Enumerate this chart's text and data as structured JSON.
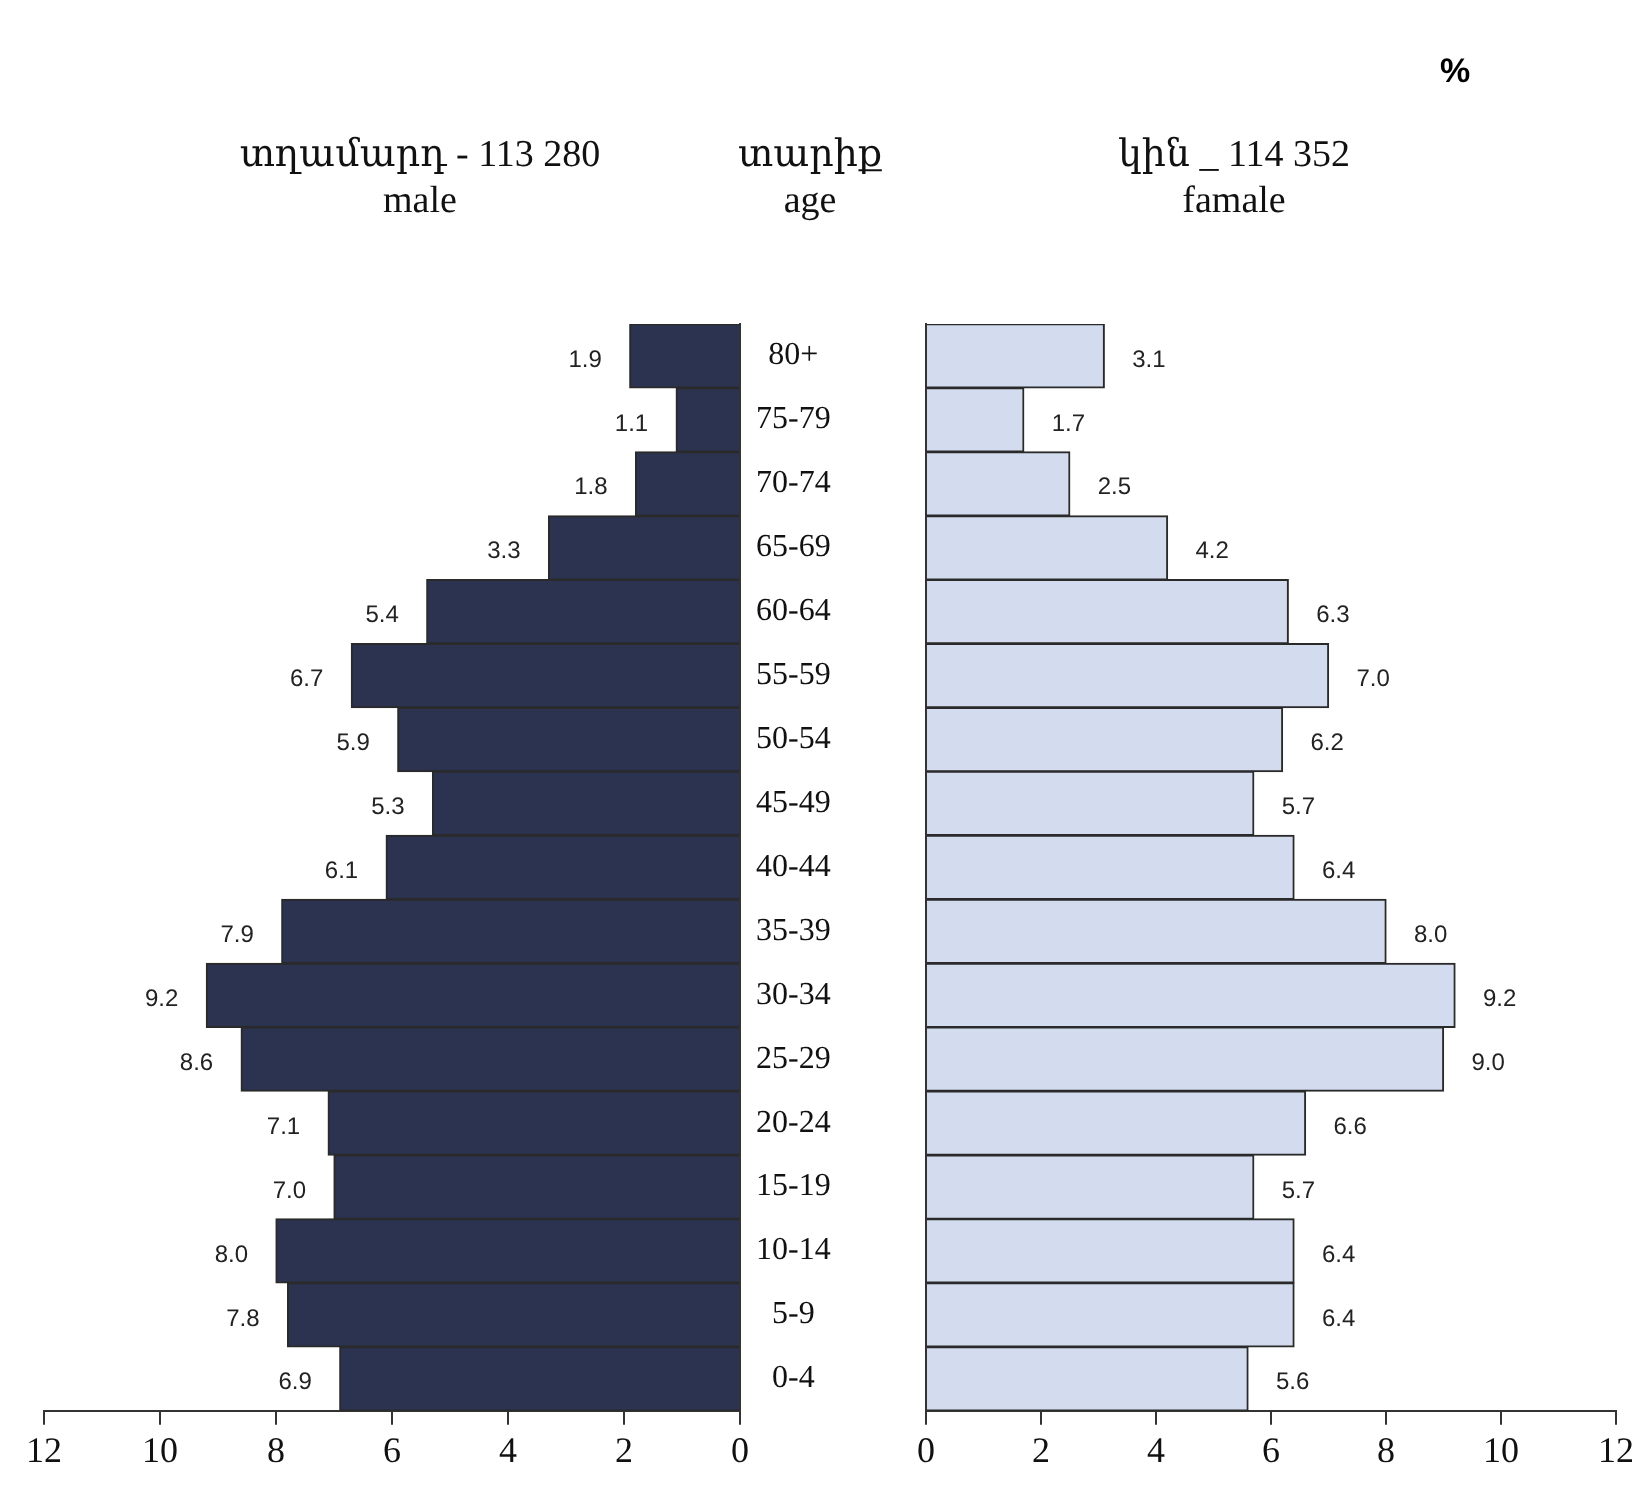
{
  "chart_data": [
    {
      "type": "bar",
      "orientation": "horizontal",
      "title": "տղամարդ  - 113 280",
      "subtitle": "male",
      "ylabel": "տարիք\nage",
      "categories": [
        "80+",
        "75-79",
        "70-74",
        "65-69",
        "60-64",
        "55-59",
        "50-54",
        "45-49",
        "40-44",
        "35-39",
        "30-34",
        "25-29",
        "20-24",
        "15-19",
        "10-14",
        "5-9",
        "0-4"
      ],
      "values": [
        1.9,
        1.1,
        1.8,
        3.3,
        5.4,
        6.7,
        5.9,
        5.3,
        6.1,
        7.9,
        9.2,
        8.6,
        7.1,
        7.0,
        8.0,
        7.8,
        6.9
      ],
      "value_labels": [
        "1.9",
        "1.1",
        "1.8",
        "3.3",
        "5.4",
        "6.7",
        "5.9",
        "5.3",
        "6.1",
        "7.9",
        "9.2",
        "8.6",
        "7.1",
        "7.0",
        "8.0",
        "7.8",
        "6.9"
      ],
      "color": "#2b3350",
      "xlim": [
        12,
        0
      ],
      "xticks": [
        12,
        10,
        8,
        6,
        4,
        2,
        0
      ],
      "grid": false,
      "legend": false
    },
    {
      "type": "bar",
      "orientation": "horizontal",
      "title": "կին  _ 114 352",
      "subtitle": "famale",
      "annotations": [
        "%"
      ],
      "categories": [
        null,
        null,
        null,
        null,
        null,
        null,
        null,
        null,
        null,
        null,
        null,
        null,
        null,
        null,
        null,
        null,
        null
      ],
      "values": [
        3.1,
        1.7,
        2.5,
        4.2,
        6.3,
        7.0,
        6.2,
        5.7,
        6.4,
        8.0,
        9.2,
        9.0,
        6.6,
        5.7,
        6.4,
        6.4,
        5.6
      ],
      "value_labels": [
        "3.1",
        "1.7",
        "2.5",
        "4.2",
        "6.3",
        "7.0",
        "6.2",
        "5.7",
        "6.4",
        "8.0",
        "9.2",
        "9.0",
        "6.6",
        "5.7",
        "6.4",
        "6.4",
        "5.6"
      ],
      "color": "#d3dcee",
      "xlim": [
        0,
        12
      ],
      "xticks": [
        0,
        2,
        4,
        6,
        8,
        10,
        12
      ],
      "grid": false,
      "legend": false,
      "tick_labels": "x"
    }
  ]
}
